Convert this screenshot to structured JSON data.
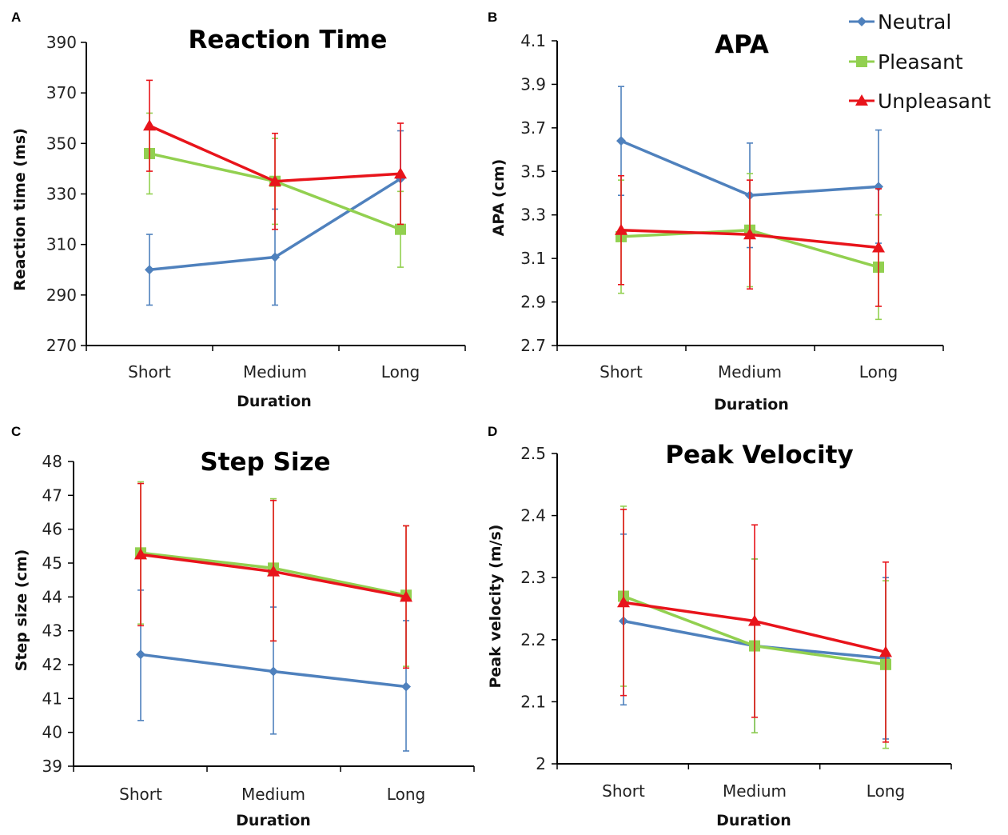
{
  "colors": {
    "Neutral": "#4f81bd",
    "Pleasant": "#92d050",
    "Unpleasant": "#e8141b"
  },
  "legend": [
    "Neutral",
    "Pleasant",
    "Unpleasant"
  ],
  "chart_data": [
    {
      "panel": "A",
      "type": "line",
      "title": "Reaction Time",
      "xlabel": "Duration",
      "ylabel": "Reaction time (ms)",
      "categories": [
        "Short",
        "Medium",
        "Long"
      ],
      "ylim": [
        270,
        390
      ],
      "yticks": [
        "270",
        "290",
        "310",
        "330",
        "350",
        "370",
        "390"
      ],
      "series": [
        {
          "name": "Neutral",
          "values": [
            300,
            305,
            336
          ],
          "err_low": [
            286,
            286,
            317
          ],
          "err_high": [
            314,
            324,
            355
          ]
        },
        {
          "name": "Pleasant",
          "values": [
            346,
            335,
            316
          ],
          "err_low": [
            330,
            318,
            301
          ],
          "err_high": [
            362,
            352,
            331
          ]
        },
        {
          "name": "Unpleasant",
          "values": [
            357,
            335,
            338
          ],
          "err_low": [
            339,
            316,
            318
          ],
          "err_high": [
            375,
            354,
            358
          ]
        }
      ]
    },
    {
      "panel": "B",
      "type": "line",
      "title": "APA",
      "xlabel": "Duration",
      "ylabel": "APA (cm)",
      "categories": [
        "Short",
        "Medium",
        "Long"
      ],
      "ylim": [
        2.7,
        4.1
      ],
      "yticks": [
        "2.7",
        "2.9",
        "3.1",
        "3.3",
        "3.5",
        "3.7",
        "3.9",
        "4.1"
      ],
      "series": [
        {
          "name": "Neutral",
          "values": [
            3.64,
            3.39,
            3.43
          ],
          "err_low": [
            3.39,
            3.15,
            3.17
          ],
          "err_high": [
            3.89,
            3.63,
            3.69
          ]
        },
        {
          "name": "Pleasant",
          "values": [
            3.2,
            3.23,
            3.06
          ],
          "err_low": [
            2.94,
            2.97,
            2.82
          ],
          "err_high": [
            3.46,
            3.49,
            3.3
          ]
        },
        {
          "name": "Unpleasant",
          "values": [
            3.23,
            3.21,
            3.15
          ],
          "err_low": [
            2.98,
            2.96,
            2.88
          ],
          "err_high": [
            3.48,
            3.46,
            3.42
          ]
        }
      ]
    },
    {
      "panel": "C",
      "type": "line",
      "title": "Step Size",
      "xlabel": "Duration",
      "ylabel": "Step size (cm)",
      "categories": [
        "Short",
        "Medium",
        "Long"
      ],
      "ylim": [
        39,
        48
      ],
      "yticks": [
        "39",
        "40",
        "41",
        "42",
        "43",
        "44",
        "45",
        "46",
        "47",
        "48"
      ],
      "series": [
        {
          "name": "Neutral",
          "values": [
            42.3,
            41.8,
            41.35
          ],
          "err_low": [
            40.35,
            39.95,
            39.45
          ],
          "err_high": [
            44.2,
            43.7,
            43.3
          ]
        },
        {
          "name": "Pleasant",
          "values": [
            45.3,
            44.85,
            44.05
          ],
          "err_low": [
            43.2,
            42.7,
            41.95
          ],
          "err_high": [
            47.4,
            46.9,
            46.1
          ]
        },
        {
          "name": "Unpleasant",
          "values": [
            45.25,
            44.75,
            44.0
          ],
          "err_low": [
            43.15,
            42.7,
            41.9
          ],
          "err_high": [
            47.35,
            46.85,
            46.1
          ]
        }
      ]
    },
    {
      "panel": "D",
      "type": "line",
      "title": "Peak Velocity",
      "xlabel": "Duration",
      "ylabel": "Peak velocity (m/s)",
      "categories": [
        "Short",
        "Medium",
        "Long"
      ],
      "ylim": [
        2,
        2.5
      ],
      "yticks": [
        "2",
        "2.1",
        "2.2",
        "2.3",
        "2.4",
        "2.5"
      ],
      "series": [
        {
          "name": "Neutral",
          "values": [
            2.23,
            2.19,
            2.17
          ],
          "err_low": [
            2.095,
            2.05,
            2.04
          ],
          "err_high": [
            2.37,
            2.33,
            2.3
          ]
        },
        {
          "name": "Pleasant",
          "values": [
            2.27,
            2.19,
            2.16
          ],
          "err_low": [
            2.125,
            2.05,
            2.025
          ],
          "err_high": [
            2.415,
            2.33,
            2.295
          ]
        },
        {
          "name": "Unpleasant",
          "values": [
            2.26,
            2.23,
            2.18
          ],
          "err_low": [
            2.11,
            2.075,
            2.035
          ],
          "err_high": [
            2.41,
            2.385,
            2.325
          ]
        }
      ]
    }
  ]
}
